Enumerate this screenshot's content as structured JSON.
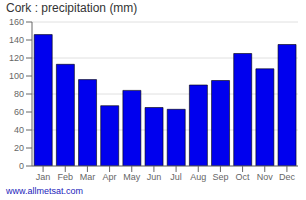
{
  "chart_data": {
    "type": "bar",
    "title": "Cork : precipitation (mm)",
    "categories": [
      "Jan",
      "Feb",
      "Mar",
      "Apr",
      "May",
      "Jun",
      "Jul",
      "Aug",
      "Sep",
      "Oct",
      "Nov",
      "Dec"
    ],
    "values": [
      146,
      113,
      96,
      67,
      84,
      65,
      63,
      90,
      95,
      125,
      108,
      135
    ],
    "color": "#0000ee",
    "ylim": [
      0,
      160
    ],
    "yticks": [
      0,
      20,
      40,
      60,
      80,
      100,
      120,
      140,
      160
    ],
    "grid": true,
    "annotations": [
      "www.allmetsat.com"
    ]
  }
}
